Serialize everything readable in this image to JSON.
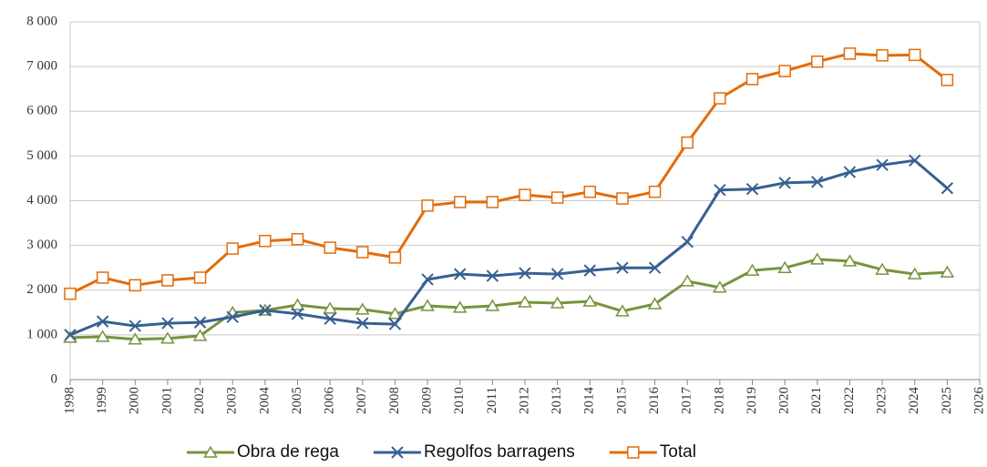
{
  "chart_data": {
    "type": "line",
    "x": [
      1998,
      1999,
      2000,
      2001,
      2002,
      2003,
      2004,
      2005,
      2006,
      2007,
      2008,
      2009,
      2010,
      2011,
      2012,
      2013,
      2014,
      2015,
      2016,
      2017,
      2018,
      2019,
      2020,
      2021,
      2022,
      2023,
      2024,
      2025
    ],
    "series": [
      {
        "name": "Obra de rega",
        "color": "#77933c",
        "marker": "triangle",
        "values": [
          940,
          960,
          900,
          920,
          980,
          1500,
          1550,
          1670,
          1590,
          1570,
          1470,
          1650,
          1610,
          1650,
          1730,
          1710,
          1750,
          1530,
          1690,
          2200,
          2060,
          2440,
          2500,
          2690,
          2650,
          2460,
          2360,
          2400
        ]
      },
      {
        "name": "Regolfos barragens",
        "color": "#376092",
        "marker": "x",
        "values": [
          1000,
          1300,
          1200,
          1260,
          1280,
          1400,
          1550,
          1470,
          1360,
          1260,
          1240,
          2240,
          2360,
          2320,
          2380,
          2360,
          2440,
          2500,
          2500,
          3080,
          4240,
          4260,
          4400,
          4420,
          4640,
          4800,
          4900,
          4280
        ]
      },
      {
        "name": "Total",
        "color": "#e46c0a",
        "marker": "square",
        "values": [
          1920,
          2280,
          2110,
          2220,
          2280,
          2930,
          3100,
          3140,
          2950,
          2850,
          2730,
          3890,
          3970,
          3970,
          4130,
          4070,
          4200,
          4050,
          4200,
          5300,
          6290,
          6720,
          6900,
          7110,
          7290,
          7250,
          7260,
          6700
        ]
      }
    ],
    "xlim": [
      1998,
      2026
    ],
    "xticks": [
      1998,
      1999,
      2000,
      2001,
      2002,
      2003,
      2004,
      2005,
      2006,
      2007,
      2008,
      2009,
      2010,
      2011,
      2012,
      2013,
      2014,
      2015,
      2016,
      2017,
      2018,
      2019,
      2020,
      2021,
      2022,
      2023,
      2024,
      2025,
      2026
    ],
    "ylim": [
      0,
      8000
    ],
    "yticks": [
      0,
      {
        "value": 1000,
        "label": "1 000"
      },
      {
        "value": 2000,
        "label": "2 000"
      },
      {
        "value": 3000,
        "label": "3 000"
      },
      {
        "value": 4000,
        "label": "4 000"
      },
      {
        "value": 5000,
        "label": "5 000"
      },
      {
        "value": 6000,
        "label": "6 000"
      },
      {
        "value": 7000,
        "label": "7 000"
      },
      {
        "value": 8000,
        "label": "8 000"
      }
    ],
    "grid": true,
    "legend": "bottom"
  }
}
